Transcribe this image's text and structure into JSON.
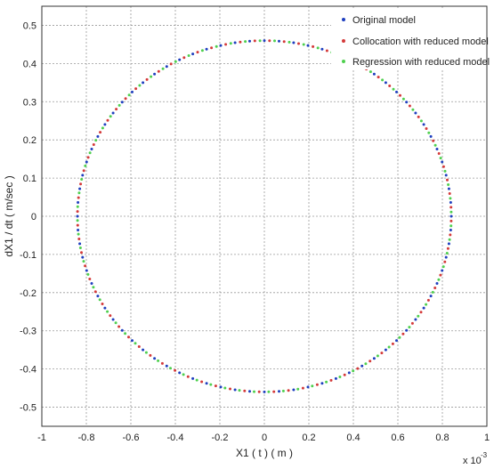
{
  "chart_data": {
    "type": "scatter",
    "title": "",
    "xlabel": "X1 ( t ) ( m )",
    "ylabel": "dX1 / dt  ( m/sec )",
    "x_multiplier_label": "x 10",
    "x_multiplier_exponent": "-3",
    "xlim": [
      -1,
      1
    ],
    "ylim": [
      -0.55,
      0.55
    ],
    "xticks": [
      "-1",
      "-0.8",
      "-0.6",
      "-0.4",
      "-0.2",
      "0",
      "0.2",
      "0.4",
      "0.6",
      "0.8",
      "1"
    ],
    "yticks": [
      "-0.5",
      "-0.4",
      "-0.3",
      "-0.2",
      "-0.1",
      "0",
      "0.1",
      "0.2",
      "0.3",
      "0.4",
      "0.5"
    ],
    "grid": true,
    "legend_position": "top-right",
    "orbit": {
      "x_amplitude": 0.84,
      "y_amplitude": 0.46,
      "points_per_series": 80
    },
    "series": [
      {
        "name": "Original model",
        "color": "#1f3fbf",
        "marker": "dot"
      },
      {
        "name": "Collocation with reduced model",
        "color": "#d43a3a",
        "marker": "dot"
      },
      {
        "name": "Regression with reduced model",
        "color": "#4fd04f",
        "marker": "dot"
      }
    ]
  }
}
